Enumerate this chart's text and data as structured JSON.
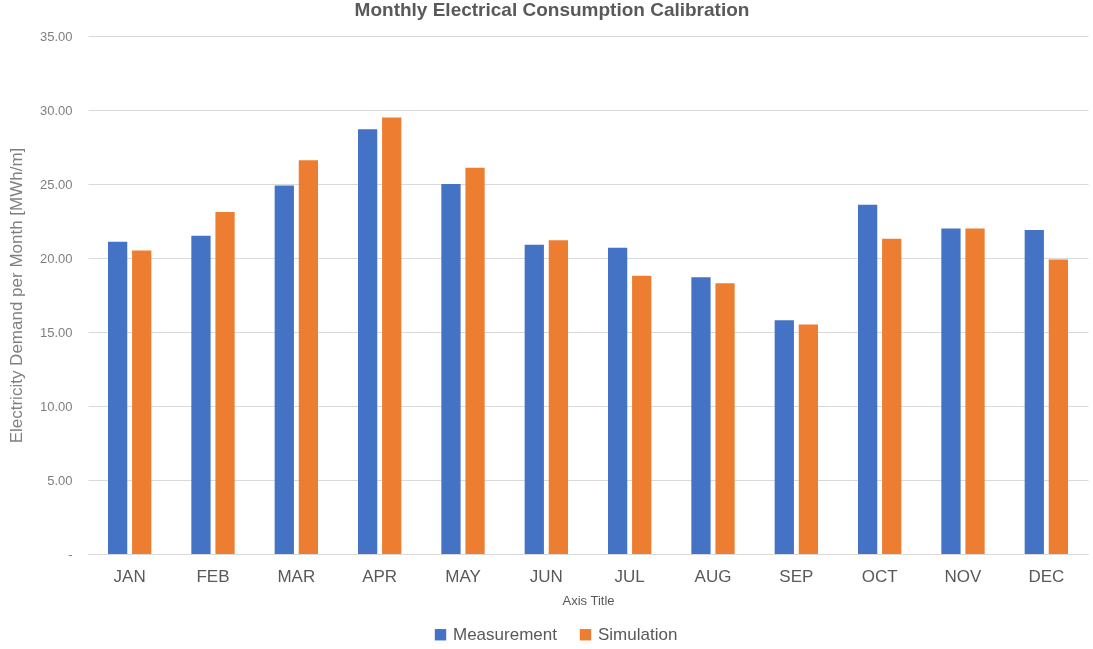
{
  "chart_data": {
    "type": "bar",
    "title": "Monthly Electrical Consumption Calibration",
    "xlabel": "Axis Title",
    "ylabel": "Electricity Demand per Month [MWh/m]",
    "categories": [
      "JAN",
      "FEB",
      "MAR",
      "APR",
      "MAY",
      "JUN",
      "JUL",
      "AUG",
      "SEP",
      "OCT",
      "NOV",
      "DEC"
    ],
    "series": [
      {
        "name": "Measurement",
        "color": "#4472c4",
        "values": [
          21.1,
          21.5,
          24.9,
          28.7,
          25.0,
          20.9,
          20.7,
          18.7,
          15.8,
          23.6,
          22.0,
          21.9
        ]
      },
      {
        "name": "Simulation",
        "color": "#ed7d31",
        "values": [
          20.5,
          23.1,
          26.6,
          29.5,
          26.1,
          21.2,
          18.8,
          18.3,
          15.5,
          21.3,
          22.0,
          19.9
        ]
      }
    ],
    "ylim": [
      0,
      35
    ],
    "yticks": [
      {
        "value": 0,
        "label": "-"
      },
      {
        "value": 5,
        "label": "5.00"
      },
      {
        "value": 10,
        "label": "10.00"
      },
      {
        "value": 15,
        "label": "15.00"
      },
      {
        "value": 20,
        "label": "20.00"
      },
      {
        "value": 25,
        "label": "25.00"
      },
      {
        "value": 30,
        "label": "30.00"
      },
      {
        "value": 35,
        "label": "35.00"
      }
    ],
    "grid": "y",
    "legend": "bottom"
  }
}
